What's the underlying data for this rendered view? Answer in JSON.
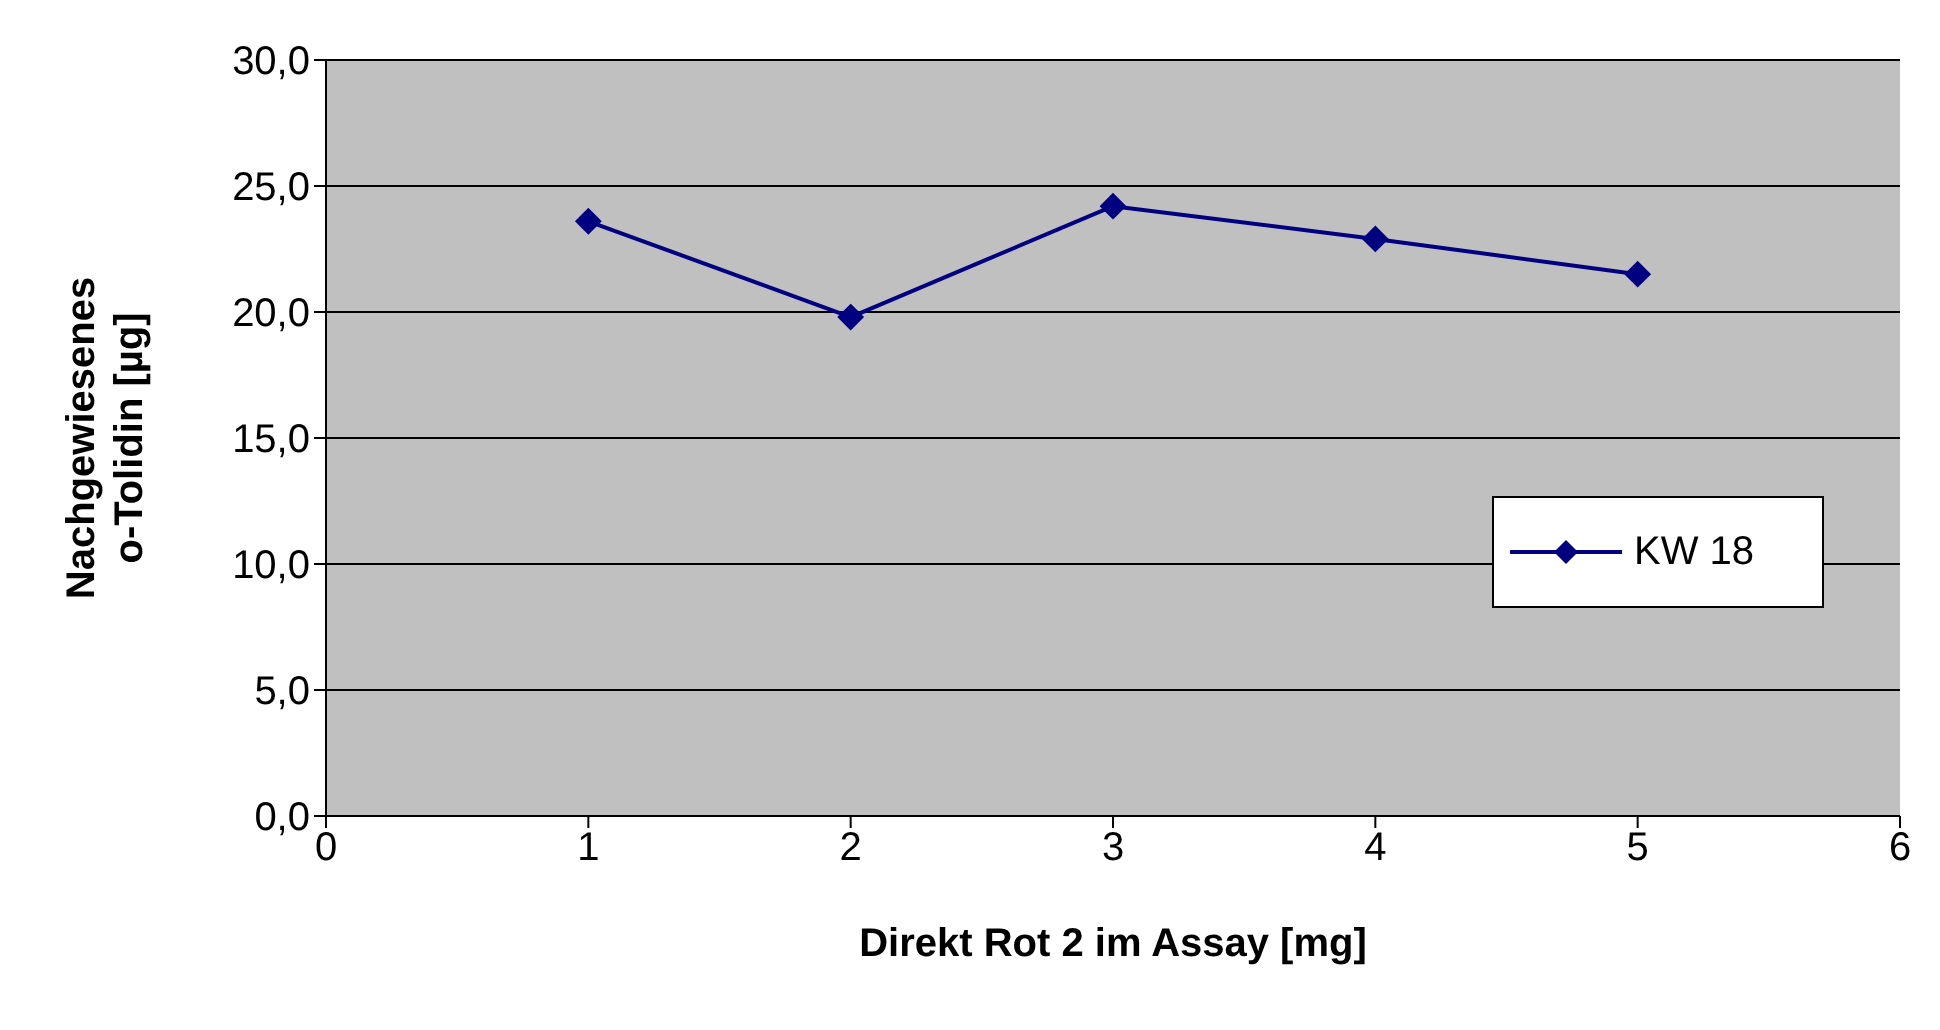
{
  "chart_data": {
    "type": "line",
    "xlabel": "Direkt Rot 2 im Assay [mg]",
    "ylabel": "Nachgewiesenes o-Tolidin [µg]",
    "x": [
      1,
      2,
      3,
      4,
      5
    ],
    "series": [
      {
        "name": "KW 18",
        "color": "#000080",
        "values": [
          23.6,
          19.8,
          24.2,
          22.9,
          21.5
        ]
      }
    ],
    "xlim": [
      0,
      6
    ],
    "xticks": [
      0,
      1,
      2,
      3,
      4,
      5,
      6
    ],
    "ylim": [
      0,
      30
    ],
    "yticks": [
      {
        "value": 0,
        "label": "0,0"
      },
      {
        "value": 5,
        "label": "5,0"
      },
      {
        "value": 10,
        "label": "10,0"
      },
      {
        "value": 15,
        "label": "15,0"
      },
      {
        "value": 20,
        "label": "20,0"
      },
      {
        "value": 25,
        "label": "25,0"
      },
      {
        "value": 30,
        "label": "30,0"
      }
    ],
    "grid": "y",
    "legend": "right",
    "marker": "diamond",
    "line_style": "solid"
  }
}
